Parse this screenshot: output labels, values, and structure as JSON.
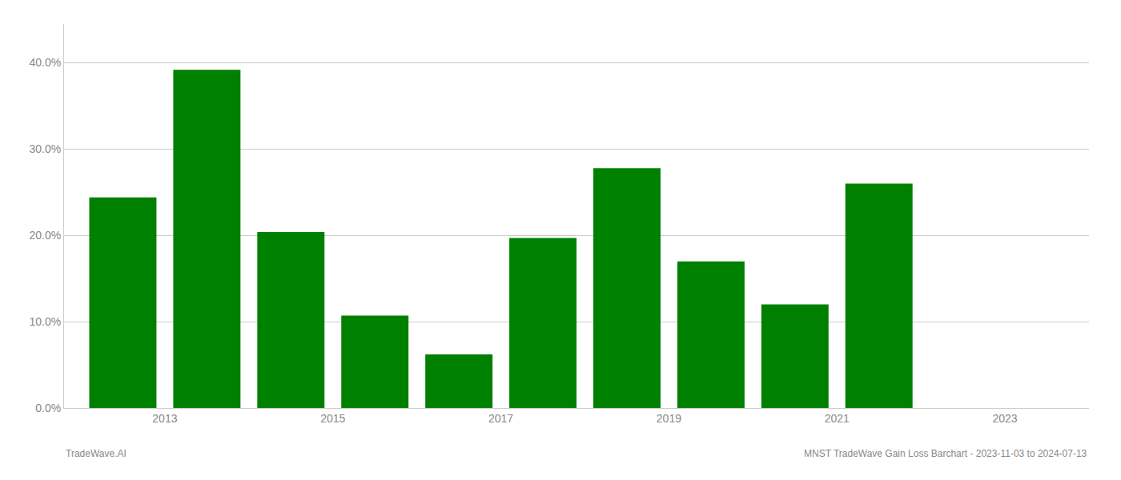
{
  "chart_data": {
    "type": "bar",
    "x": [
      2013,
      2014,
      2015,
      2016,
      2017,
      2018,
      2019,
      2020,
      2021,
      2022
    ],
    "values": [
      0.244,
      0.392,
      0.204,
      0.107,
      0.062,
      0.197,
      0.278,
      0.17,
      0.12,
      0.26
    ],
    "color": "#008000",
    "xlim": [
      2012.3,
      2024.5
    ],
    "xticks": [
      {
        "value": 2013.5,
        "label": "2013"
      },
      {
        "value": 2015.5,
        "label": "2015"
      },
      {
        "value": 2017.5,
        "label": "2017"
      },
      {
        "value": 2019.5,
        "label": "2019"
      },
      {
        "value": 2021.5,
        "label": "2021"
      },
      {
        "value": 2023.5,
        "label": "2023"
      }
    ],
    "ylim": [
      0,
      0.445
    ],
    "yticks": [
      {
        "value": 0.0,
        "label": "0.0%"
      },
      {
        "value": 0.1,
        "label": "10.0%"
      },
      {
        "value": 0.2,
        "label": "20.0%"
      },
      {
        "value": 0.3,
        "label": "30.0%"
      },
      {
        "value": 0.4,
        "label": "40.0%"
      }
    ],
    "grid": true,
    "annotations": [
      "TradeWave.AI",
      "MNST TradeWave Gain Loss Barchart - 2023-11-03 to 2024-07-13"
    ]
  }
}
